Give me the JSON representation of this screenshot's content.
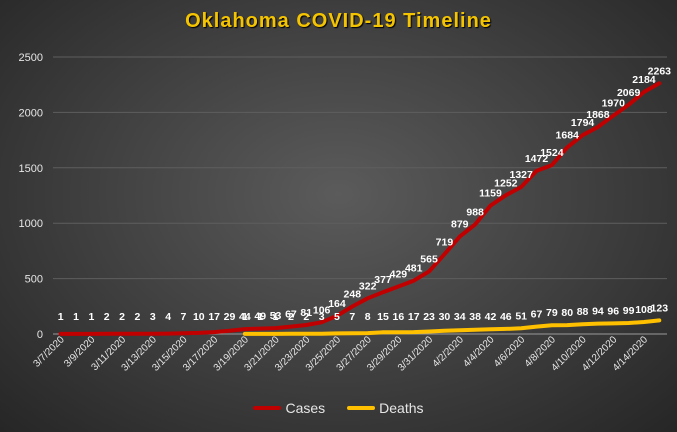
{
  "chart_data": {
    "type": "line",
    "title": "Oklahoma  COVID-19  Timeline",
    "xlabel": "",
    "ylabel": "",
    "ylim": [
      0,
      2500
    ],
    "yticks": [
      0,
      500,
      1000,
      1500,
      2000,
      2500
    ],
    "x": [
      "3/7/2020",
      "3/8/2020",
      "3/9/2020",
      "3/10/2020",
      "3/11/2020",
      "3/12/2020",
      "3/13/2020",
      "3/14/2020",
      "3/15/2020",
      "3/16/2020",
      "3/17/2020",
      "3/18/2020",
      "3/19/2020",
      "3/20/2020",
      "3/21/2020",
      "3/22/2020",
      "3/23/2020",
      "3/24/2020",
      "3/25/2020",
      "3/26/2020",
      "3/27/2020",
      "3/28/2020",
      "3/29/2020",
      "3/30/2020",
      "3/31/2020",
      "4/1/2020",
      "4/2/2020",
      "4/3/2020",
      "4/4/2020",
      "4/5/2020",
      "4/6/2020",
      "4/7/2020",
      "4/8/2020",
      "4/9/2020",
      "4/10/2020",
      "4/11/2020",
      "4/12/2020",
      "4/13/2020",
      "4/14/2020",
      "4/15/2020"
    ],
    "x_tick_labels": [
      "3/7/2020",
      "3/9/2020",
      "3/11/2020",
      "3/13/2020",
      "3/15/2020",
      "3/17/2020",
      "3/19/2020",
      "3/21/2020",
      "3/23/2020",
      "3/25/2020",
      "3/27/2020",
      "3/29/2020",
      "3/31/2020",
      "4/2/2020",
      "4/4/2020",
      "4/6/2020",
      "4/8/2020",
      "4/10/2020",
      "4/12/2020",
      "4/14/2020"
    ],
    "series": [
      {
        "name": "Cases",
        "color": "#c00000",
        "values": [
          1,
          1,
          1,
          2,
          2,
          2,
          3,
          4,
          7,
          10,
          17,
          29,
          44,
          49,
          53,
          67,
          81,
          106,
          164,
          248,
          322,
          377,
          429,
          481,
          565,
          719,
          879,
          988,
          1159,
          1252,
          1327,
          1472,
          1524,
          1684,
          1794,
          1868,
          1970,
          2069,
          2184,
          2263
        ]
      },
      {
        "name": "Deaths",
        "color": "#ffc000",
        "values": [
          null,
          null,
          null,
          null,
          null,
          null,
          null,
          null,
          null,
          null,
          null,
          null,
          1,
          1,
          1,
          2,
          2,
          3,
          5,
          7,
          8,
          15,
          16,
          17,
          23,
          30,
          34,
          38,
          42,
          46,
          51,
          67,
          79,
          80,
          88,
          94,
          96,
          99,
          108,
          123
        ]
      }
    ],
    "grid": true,
    "legend": "bottom"
  }
}
